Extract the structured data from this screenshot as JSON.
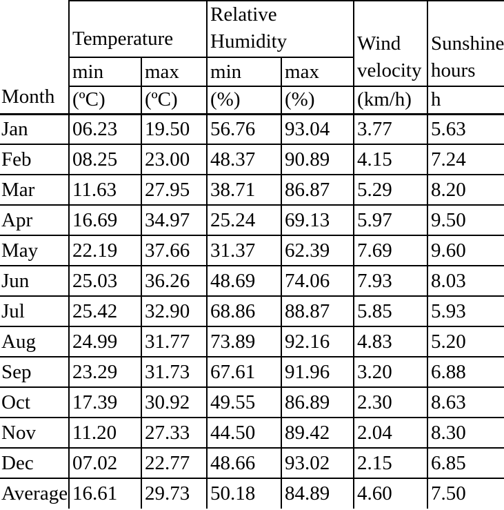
{
  "table": {
    "header": {
      "month": "Month",
      "temperature": "Temperature",
      "relative_humidity": [
        "Relative",
        "Humidity"
      ],
      "wind_velocity": [
        "Wind",
        "velocity"
      ],
      "sunshine_hours": [
        "Sunshine",
        "hours"
      ],
      "min": "min",
      "max": "max",
      "units": {
        "temp_min": "(ºC)",
        "temp_max": "(ºC)",
        "hum_min": "(%)",
        "hum_max": "(%)",
        "wind": "(km/h)",
        "sunshine": "h"
      }
    },
    "rows": [
      {
        "month": "Jan",
        "tmin": "06.23",
        "tmax": "19.50",
        "hmin": "56.76",
        "hmax": "93.04",
        "wind": "3.77",
        "sun": "5.63"
      },
      {
        "month": "Feb",
        "tmin": "08.25",
        "tmax": "23.00",
        "hmin": "48.37",
        "hmax": "90.89",
        "wind": "4.15",
        "sun": "7.24"
      },
      {
        "month": "Mar",
        "tmin": "11.63",
        "tmax": "27.95",
        "hmin": "38.71",
        "hmax": "86.87",
        "wind": "5.29",
        "sun": "8.20"
      },
      {
        "month": "Apr",
        "tmin": "16.69",
        "tmax": "34.97",
        "hmin": "25.24",
        "hmax": "69.13",
        "wind": "5.97",
        "sun": "9.50"
      },
      {
        "month": "May",
        "tmin": "22.19",
        "tmax": "37.66",
        "hmin": "31.37",
        "hmax": "62.39",
        "wind": "7.69",
        "sun": "9.60"
      },
      {
        "month": "Jun",
        "tmin": "25.03",
        "tmax": "36.26",
        "hmin": "48.69",
        "hmax": "74.06",
        "wind": "7.93",
        "sun": "8.03"
      },
      {
        "month": "Jul",
        "tmin": "25.42",
        "tmax": "32.90",
        "hmin": "68.86",
        "hmax": "88.87",
        "wind": "5.85",
        "sun": "5.93"
      },
      {
        "month": "Aug",
        "tmin": "24.99",
        "tmax": "31.77",
        "hmin": "73.89",
        "hmax": "92.16",
        "wind": "4.83",
        "sun": "5.20"
      },
      {
        "month": "Sep",
        "tmin": "23.29",
        "tmax": "31.73",
        "hmin": "67.61",
        "hmax": "91.96",
        "wind": "3.20",
        "sun": "6.88"
      },
      {
        "month": "Oct",
        "tmin": "17.39",
        "tmax": "30.92",
        "hmin": "49.55",
        "hmax": "86.89",
        "wind": "2.30",
        "sun": "8.63"
      },
      {
        "month": "Nov",
        "tmin": "11.20",
        "tmax": "27.33",
        "hmin": "44.50",
        "hmax": "89.42",
        "wind": "2.04",
        "sun": "8.30"
      },
      {
        "month": "Dec",
        "tmin": "07.02",
        "tmax": "22.77",
        "hmin": "48.66",
        "hmax": "93.02",
        "wind": "2.15",
        "sun": "6.85"
      },
      {
        "month": "Average",
        "tmin": "16.61",
        "tmax": "29.73",
        "hmin": "50.18",
        "hmax": "84.89",
        "wind": "4.60",
        "sun": "7.50"
      }
    ]
  },
  "chart_data": {
    "type": "table",
    "columns": [
      "Month",
      "Temperature min (ºC)",
      "Temperature max (ºC)",
      "Relative Humidity min (%)",
      "Relative Humidity max (%)",
      "Wind velocity (km/h)",
      "Sunshine hours h"
    ],
    "rows": [
      [
        "Jan",
        6.23,
        19.5,
        56.76,
        93.04,
        3.77,
        5.63
      ],
      [
        "Feb",
        8.25,
        23.0,
        48.37,
        90.89,
        4.15,
        7.24
      ],
      [
        "Mar",
        11.63,
        27.95,
        38.71,
        86.87,
        5.29,
        8.2
      ],
      [
        "Apr",
        16.69,
        34.97,
        25.24,
        69.13,
        5.97,
        9.5
      ],
      [
        "May",
        22.19,
        37.66,
        31.37,
        62.39,
        7.69,
        9.6
      ],
      [
        "Jun",
        25.03,
        36.26,
        48.69,
        74.06,
        7.93,
        8.03
      ],
      [
        "Jul",
        25.42,
        32.9,
        68.86,
        88.87,
        5.85,
        5.93
      ],
      [
        "Aug",
        24.99,
        31.77,
        73.89,
        92.16,
        4.83,
        5.2
      ],
      [
        "Sep",
        23.29,
        31.73,
        67.61,
        91.96,
        3.2,
        6.88
      ],
      [
        "Oct",
        17.39,
        30.92,
        49.55,
        86.89,
        2.3,
        8.63
      ],
      [
        "Nov",
        11.2,
        27.33,
        44.5,
        89.42,
        2.04,
        8.3
      ],
      [
        "Dec",
        7.02,
        22.77,
        48.66,
        93.02,
        2.15,
        6.85
      ],
      [
        "Average",
        16.61,
        29.73,
        50.18,
        84.89,
        4.6,
        7.5
      ]
    ]
  }
}
